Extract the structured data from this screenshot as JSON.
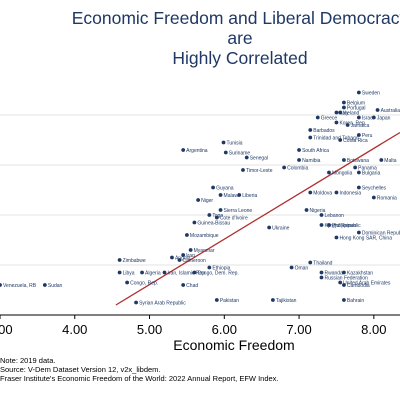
{
  "chart_data": {
    "type": "scatter",
    "title": [
      "Economic Freedom and Liberal Democracy",
      "are",
      "Highly Correlated"
    ],
    "xlabel": "Economic Freedom",
    "ylabel": "",
    "xlim": [
      3.0,
      8.35
    ],
    "ylim": [
      0.0,
      0.92
    ],
    "x_ticks": [
      "3.00",
      "4.00",
      "5.00",
      "6.00",
      "7.00",
      "8.00"
    ],
    "y_gridlines": [
      0.2,
      0.4,
      0.6,
      0.8
    ],
    "grid": true,
    "point_color": "#1f3864",
    "fit_line_color": "#b03030",
    "fit_line": {
      "x": [
        4.55,
        8.35
      ],
      "y": [
        0.04,
        0.73
      ]
    },
    "notes": [
      "Note: 2019 data.",
      "Source: V-Dem Dataset Version 12, v2x_libdem.",
      "Fraser Institute's Economic Freedom of the World: 2022 Annual Report, EFW Index."
    ],
    "points": [
      {
        "label": "Venezuela, RB",
        "x": 3.0,
        "y": 0.12
      },
      {
        "label": "Sudan",
        "x": 3.6,
        "y": 0.12
      },
      {
        "label": "Zimbabwe",
        "x": 4.6,
        "y": 0.22
      },
      {
        "label": "Libya",
        "x": 4.6,
        "y": 0.17
      },
      {
        "label": "Congo, Rep.",
        "x": 4.7,
        "y": 0.13
      },
      {
        "label": "Algeria",
        "x": 4.9,
        "y": 0.17
      },
      {
        "label": "Syrian Arab Republic",
        "x": 4.82,
        "y": 0.05
      },
      {
        "label": "Iran, Islamic Rep.",
        "x": 5.2,
        "y": 0.17
      },
      {
        "label": "Angola",
        "x": 5.3,
        "y": 0.23
      },
      {
        "label": "Congo, Dem. Rep.",
        "x": 5.6,
        "y": 0.17
      },
      {
        "label": "Chad",
        "x": 5.45,
        "y": 0.12
      },
      {
        "label": "Argentina",
        "x": 5.45,
        "y": 0.66
      },
      {
        "label": "Niger",
        "x": 5.65,
        "y": 0.46
      },
      {
        "label": "Tunisia",
        "x": 5.99,
        "y": 0.69
      },
      {
        "label": "Suriname",
        "x": 6.02,
        "y": 0.65
      },
      {
        "label": "Senegal",
        "x": 6.3,
        "y": 0.63
      },
      {
        "label": "Sierra Leone",
        "x": 5.95,
        "y": 0.42
      },
      {
        "label": "Guyana",
        "x": 5.85,
        "y": 0.51
      },
      {
        "label": "Malawi",
        "x": 5.95,
        "y": 0.48
      },
      {
        "label": "Liberia",
        "x": 6.2,
        "y": 0.48
      },
      {
        "label": "Timor-Leste",
        "x": 6.25,
        "y": 0.58
      },
      {
        "label": "Myanmar",
        "x": 5.55,
        "y": 0.26
      },
      {
        "label": "Iraq",
        "x": 5.45,
        "y": 0.24
      },
      {
        "label": "Cameroon",
        "x": 5.4,
        "y": 0.22
      },
      {
        "label": "Ethiopia",
        "x": 5.8,
        "y": 0.19
      },
      {
        "label": "Pakistan",
        "x": 5.9,
        "y": 0.06
      },
      {
        "label": "Mozambique",
        "x": 5.5,
        "y": 0.32
      },
      {
        "label": "Guinea-Bissau",
        "x": 5.6,
        "y": 0.37
      },
      {
        "label": "Togo",
        "x": 5.8,
        "y": 0.4
      },
      {
        "label": "Cote d'Ivoire",
        "x": 5.9,
        "y": 0.39
      },
      {
        "label": "Ukraine",
        "x": 6.6,
        "y": 0.35
      },
      {
        "label": "Colombia",
        "x": 6.8,
        "y": 0.59
      },
      {
        "label": "South Africa",
        "x": 7.0,
        "y": 0.66
      },
      {
        "label": "Namibia",
        "x": 7.0,
        "y": 0.62
      },
      {
        "label": "Barbados",
        "x": 7.15,
        "y": 0.74
      },
      {
        "label": "Trinidad and Tobago",
        "x": 7.15,
        "y": 0.71
      },
      {
        "label": "Costa Rica",
        "x": 7.55,
        "y": 0.7
      },
      {
        "label": "Greece",
        "x": 7.25,
        "y": 0.79
      },
      {
        "label": "Peru",
        "x": 7.8,
        "y": 0.72
      },
      {
        "label": "Jamaica",
        "x": 7.65,
        "y": 0.76
      },
      {
        "label": "Botswana",
        "x": 7.6,
        "y": 0.62
      },
      {
        "label": "Panama",
        "x": 7.75,
        "y": 0.59
      },
      {
        "label": "Mongolia",
        "x": 7.4,
        "y": 0.57
      },
      {
        "label": "Bulgaria",
        "x": 7.8,
        "y": 0.57
      },
      {
        "label": "Malta",
        "x": 8.1,
        "y": 0.62
      },
      {
        "label": "Indonesia",
        "x": 7.5,
        "y": 0.49
      },
      {
        "label": "Seychelles",
        "x": 7.8,
        "y": 0.51
      },
      {
        "label": "Moldova",
        "x": 7.15,
        "y": 0.49
      },
      {
        "label": "Romania",
        "x": 8.0,
        "y": 0.47
      },
      {
        "label": "Nigeria",
        "x": 7.1,
        "y": 0.42
      },
      {
        "label": "Lebanon",
        "x": 7.3,
        "y": 0.4
      },
      {
        "label": "Kyrgyz Republic",
        "x": 7.3,
        "y": 0.36
      },
      {
        "label": "Philippines",
        "x": 7.4,
        "y": 0.36
      },
      {
        "label": "Dominican Republic",
        "x": 7.8,
        "y": 0.33
      },
      {
        "label": "Hong Kong SAR, China",
        "x": 7.5,
        "y": 0.31
      },
      {
        "label": "Thailand",
        "x": 7.15,
        "y": 0.21
      },
      {
        "label": "Oman",
        "x": 6.9,
        "y": 0.19
      },
      {
        "label": "Rwanda",
        "x": 7.3,
        "y": 0.17
      },
      {
        "label": "Kazakhstan",
        "x": 7.6,
        "y": 0.17
      },
      {
        "label": "United Arab Emirates",
        "x": 7.55,
        "y": 0.13
      },
      {
        "label": "Cambodia",
        "x": 7.6,
        "y": 0.12
      },
      {
        "label": "Bahrain",
        "x": 7.6,
        "y": 0.06
      },
      {
        "label": "Russian Federation",
        "x": 7.3,
        "y": 0.15
      },
      {
        "label": "Tajikistan",
        "x": 6.65,
        "y": 0.06
      },
      {
        "label": "Sweden",
        "x": 7.8,
        "y": 0.89
      },
      {
        "label": "Belgium",
        "x": 7.6,
        "y": 0.85
      },
      {
        "label": "Portugal",
        "x": 7.6,
        "y": 0.83
      },
      {
        "label": "Iceland",
        "x": 7.55,
        "y": 0.81
      },
      {
        "label": "Israel",
        "x": 7.8,
        "y": 0.79
      },
      {
        "label": "Korea, Rep.",
        "x": 7.5,
        "y": 0.77
      },
      {
        "label": "Australia",
        "x": 8.05,
        "y": 0.82
      },
      {
        "label": "Japan",
        "x": 8.0,
        "y": 0.79
      },
      {
        "label": "Italy",
        "x": 7.5,
        "y": 0.81
      }
    ]
  }
}
